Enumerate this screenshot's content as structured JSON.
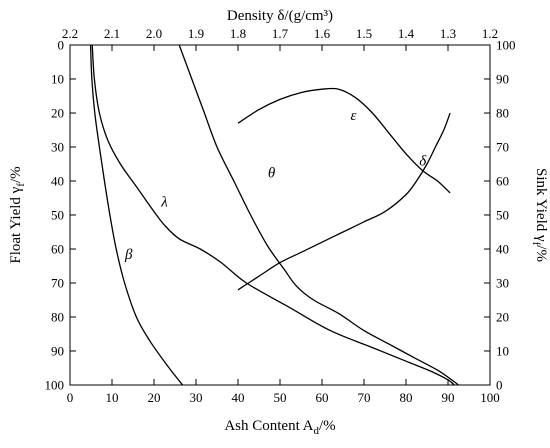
{
  "chart_data": {
    "type": "line",
    "axes": {
      "bottom": {
        "label": "Ash Content A",
        "label_sub": "d",
        "label_suffix": "/%",
        "range": [
          0,
          100
        ],
        "ticks": [
          0,
          10,
          20,
          30,
          40,
          50,
          60,
          70,
          80,
          90,
          100
        ]
      },
      "left": {
        "label": "Float Yield γ",
        "label_sub": "f",
        "label_suffix": "/%",
        "range": [
          0,
          100
        ],
        "reversed": true,
        "ticks": [
          0,
          10,
          20,
          30,
          40,
          50,
          60,
          70,
          80,
          90,
          100
        ]
      },
      "right": {
        "label": "Sink Yield γ",
        "label_sub": "f",
        "label_suffix": "/%",
        "range": [
          0,
          100
        ],
        "ticks": [
          0,
          10,
          20,
          30,
          40,
          50,
          60,
          70,
          80,
          90,
          100
        ]
      },
      "top": {
        "label": "Density δ/(g/cm³)",
        "range": [
          2.2,
          1.2
        ],
        "ticks": [
          "2.2",
          "2.1",
          "2.0",
          "1.9",
          "1.8",
          "1.7",
          "1.6",
          "1.5",
          "1.4",
          "1.3",
          "1.2"
        ]
      }
    },
    "series": [
      {
        "name": "β",
        "axis": "left",
        "points": [
          [
            4.9,
            0
          ],
          [
            5.2,
            10
          ],
          [
            5.9,
            20
          ],
          [
            7,
            30
          ],
          [
            8.2,
            40
          ],
          [
            9.5,
            50
          ],
          [
            11,
            60
          ],
          [
            13,
            70
          ],
          [
            15.8,
            80
          ],
          [
            19,
            87
          ],
          [
            23,
            94
          ],
          [
            26.8,
            100
          ]
        ]
      },
      {
        "name": "λ",
        "axis": "left",
        "points": [
          [
            5.3,
            0
          ],
          [
            5.8,
            10
          ],
          [
            7,
            20
          ],
          [
            9,
            28
          ],
          [
            12,
            35
          ],
          [
            16,
            42
          ],
          [
            20,
            49
          ],
          [
            22.5,
            53
          ],
          [
            26,
            57
          ],
          [
            31,
            60
          ],
          [
            36,
            64
          ],
          [
            42,
            70
          ],
          [
            52,
            77
          ],
          [
            62,
            84
          ],
          [
            72,
            89
          ],
          [
            80,
            93
          ],
          [
            86,
            96
          ],
          [
            90,
            98.5
          ],
          [
            91.5,
            100
          ]
        ]
      },
      {
        "name": "θ",
        "axis": "left",
        "points": [
          [
            26,
            0
          ],
          [
            29,
            10
          ],
          [
            32,
            20
          ],
          [
            35,
            30
          ],
          [
            39,
            40
          ],
          [
            43,
            50
          ],
          [
            47,
            59
          ],
          [
            51,
            66
          ],
          [
            54,
            71
          ],
          [
            58,
            75
          ],
          [
            64,
            79
          ],
          [
            70,
            84
          ],
          [
            76,
            88
          ],
          [
            82,
            92
          ],
          [
            88,
            96
          ],
          [
            92.5,
            100
          ]
        ]
      },
      {
        "name": "ε",
        "axis": "left",
        "points": [
          [
            40,
            23
          ],
          [
            45,
            19
          ],
          [
            50,
            16
          ],
          [
            55,
            14
          ],
          [
            60,
            13
          ],
          [
            64,
            13
          ],
          [
            68,
            15.5
          ],
          [
            72,
            20
          ],
          [
            76,
            26
          ],
          [
            80,
            32
          ],
          [
            84,
            37
          ],
          [
            87.5,
            40
          ],
          [
            90.5,
            43.5
          ]
        ]
      },
      {
        "name": "δ",
        "axis": "left",
        "points": [
          [
            40,
            72
          ],
          [
            45,
            68
          ],
          [
            50,
            64
          ],
          [
            55,
            61
          ],
          [
            60,
            58
          ],
          [
            65,
            55
          ],
          [
            70,
            52
          ],
          [
            75,
            49
          ],
          [
            80,
            44
          ],
          [
            82.5,
            40
          ],
          [
            85,
            35
          ],
          [
            87,
            30
          ],
          [
            89,
            25
          ],
          [
            90.5,
            20
          ]
        ]
      }
    ],
    "series_labels": [
      {
        "text": "β",
        "x": 14,
        "y": 63
      },
      {
        "text": "λ",
        "x": 22.5,
        "y": 47.5
      },
      {
        "text": "θ",
        "x": 48,
        "y": 39
      },
      {
        "text": "ε",
        "x": 67.5,
        "y": 22
      },
      {
        "text": "δ",
        "x": 84,
        "y": 35.5
      }
    ]
  }
}
